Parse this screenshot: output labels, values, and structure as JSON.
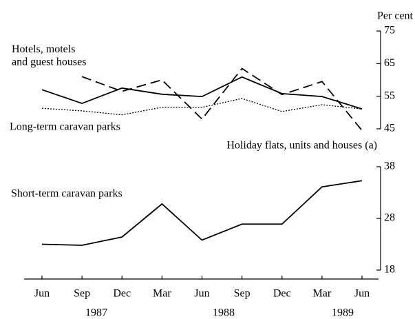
{
  "chart_data": [
    {
      "type": "line",
      "ylabel": "Per cent",
      "ylim": [
        45,
        75
      ],
      "yticks": [
        45,
        55,
        65,
        75
      ],
      "series": [
        {
          "name": "Hotels, motels\nand guest houses",
          "color": "#000000",
          "dash": "solid",
          "values": [
            57,
            52.8,
            57.5,
            55.6,
            54.9,
            60.9,
            55.8,
            54.9,
            51.1
          ]
        },
        {
          "name": "Holiday flats, units and houses (a)",
          "color": "#000000",
          "dash": "dashed",
          "values": [
            null,
            61,
            56.5,
            60,
            48,
            63.5,
            55.5,
            59.5,
            44.5
          ]
        },
        {
          "name": "Long-term caravan parks",
          "color": "#000000",
          "dash": "dotted",
          "values": [
            51.3,
            50.5,
            49.3,
            51.6,
            51.6,
            54.3,
            50.3,
            52.4,
            51.1
          ]
        }
      ]
    },
    {
      "type": "line",
      "categories": [
        "Jun",
        "Sep",
        "Dec",
        "Mar",
        "Jun",
        "Sep",
        "Dec",
        "Mar",
        "Jun"
      ],
      "year_labels": [
        "1987",
        "1988",
        "1989"
      ],
      "ylim": [
        18,
        38
      ],
      "yticks": [
        18,
        28,
        38
      ],
      "series": [
        {
          "name": "Short-term caravan parks",
          "color": "#000000",
          "dash": "solid",
          "values": [
            23,
            22.8,
            24.4,
            30.8,
            23.8,
            26.9,
            26.9,
            34.1,
            35.3
          ]
        }
      ]
    }
  ]
}
